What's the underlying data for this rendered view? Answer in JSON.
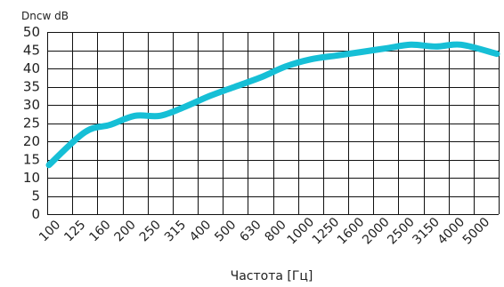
{
  "chart_data": {
    "type": "line",
    "title": "",
    "ylabel": "Dncw dB",
    "xlabel": "Частота [Гц]",
    "categories": [
      "100",
      "125",
      "160",
      "200",
      "250",
      "315",
      "400",
      "500",
      "630",
      "800",
      "1000",
      "1250",
      "1600",
      "2000",
      "2500",
      "3150",
      "4000",
      "5000"
    ],
    "y_ticks": [
      "0",
      "5",
      "10",
      "15",
      "20",
      "25",
      "30",
      "35",
      "40",
      "45",
      "50"
    ],
    "ylim": [
      0,
      50
    ],
    "grid": true,
    "series": [
      {
        "name": "",
        "color": "#16bfd6",
        "values": [
          13.5,
          22.5,
          24.5,
          27,
          27,
          29.5,
          32.5,
          35,
          37.5,
          40.5,
          42.5,
          43.5,
          44.5,
          45.5,
          46.5,
          46,
          46.5,
          44
        ]
      }
    ]
  }
}
